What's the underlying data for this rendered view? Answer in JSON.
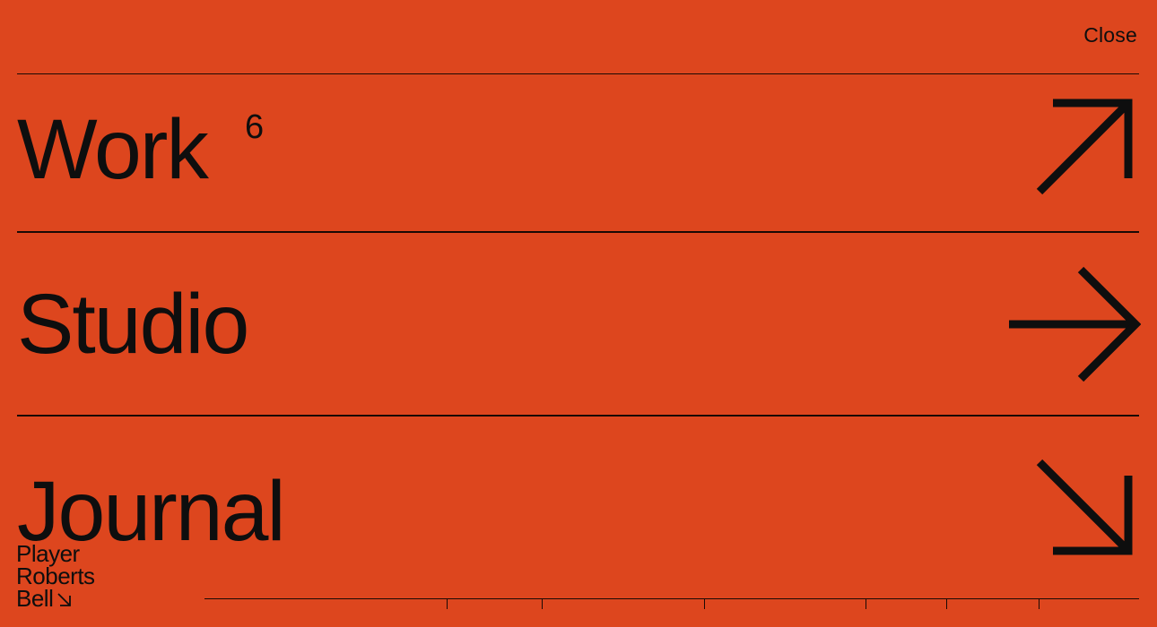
{
  "header": {
    "close_label": "Close"
  },
  "nav": {
    "items": [
      {
        "label": "Work",
        "count": "6",
        "arrow_icon": "arrow-up-right-icon"
      },
      {
        "label": "Studio",
        "count": "",
        "arrow_icon": "arrow-right-icon"
      },
      {
        "label": "Journal",
        "count": "",
        "arrow_icon": "arrow-down-right-icon"
      }
    ]
  },
  "brand": {
    "lines": [
      "Player",
      "Roberts",
      "Bell"
    ],
    "icon": "arrow-down-right-icon"
  },
  "colors": {
    "background": "#dd461e",
    "foreground": "#0e0e0e"
  }
}
